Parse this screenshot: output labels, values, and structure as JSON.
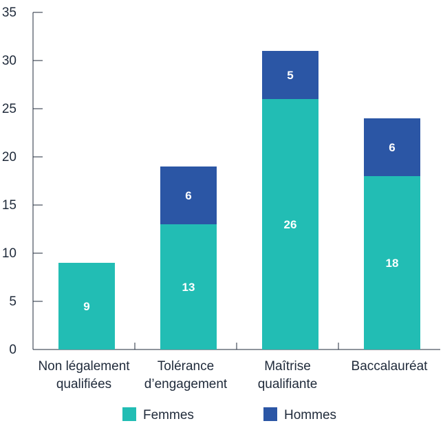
{
  "chart_data": {
    "type": "bar",
    "stacked": true,
    "categories": [
      [
        "Non légalement",
        "qualifiées"
      ],
      [
        "Tolérance",
        "d’engagement"
      ],
      [
        "Maîtrise",
        "qualifiante"
      ],
      [
        "Baccalauréat"
      ]
    ],
    "series": [
      {
        "name": "Femmes",
        "values": [
          9,
          13,
          26,
          18
        ],
        "color": "#22bdb4"
      },
      {
        "name": "Hommes",
        "values": [
          0,
          6,
          5,
          6
        ],
        "color": "#2b56a5"
      }
    ],
    "ylim": [
      0,
      35
    ],
    "yticks": [
      0,
      5,
      10,
      15,
      20,
      25,
      30,
      35
    ],
    "legend_position": "bottom",
    "grid": false
  }
}
